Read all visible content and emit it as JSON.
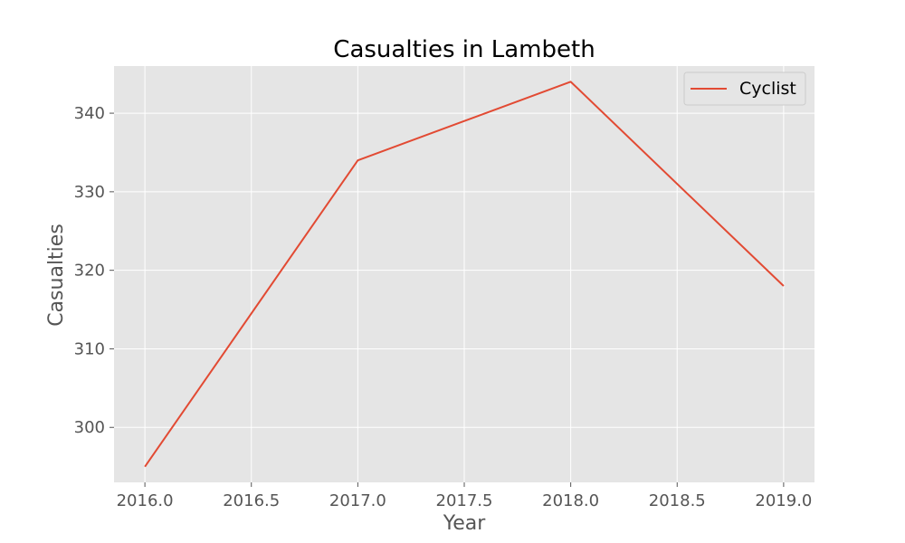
{
  "chart_data": {
    "type": "line",
    "title": "Casualties in Lambeth",
    "xlabel": "Year",
    "ylabel": "Casualties",
    "x": [
      2016,
      2017,
      2018,
      2019
    ],
    "series": [
      {
        "name": "Cyclist",
        "values": [
          295,
          334,
          344,
          318
        ],
        "color": "#e24a33"
      }
    ],
    "xlim": [
      2015.855,
      2019.145
    ],
    "ylim": [
      293.0,
      346.0
    ],
    "xticks": [
      "2016.0",
      "2016.5",
      "2017.0",
      "2017.5",
      "2018.0",
      "2018.5",
      "2019.0"
    ],
    "yticks": [
      "300",
      "310",
      "320",
      "330",
      "340"
    ],
    "grid": true,
    "legend_position": "top-right",
    "colors": {
      "plot_background": "#e5e5e5",
      "grid": "#ffffff",
      "tick_text": "#555555"
    }
  }
}
